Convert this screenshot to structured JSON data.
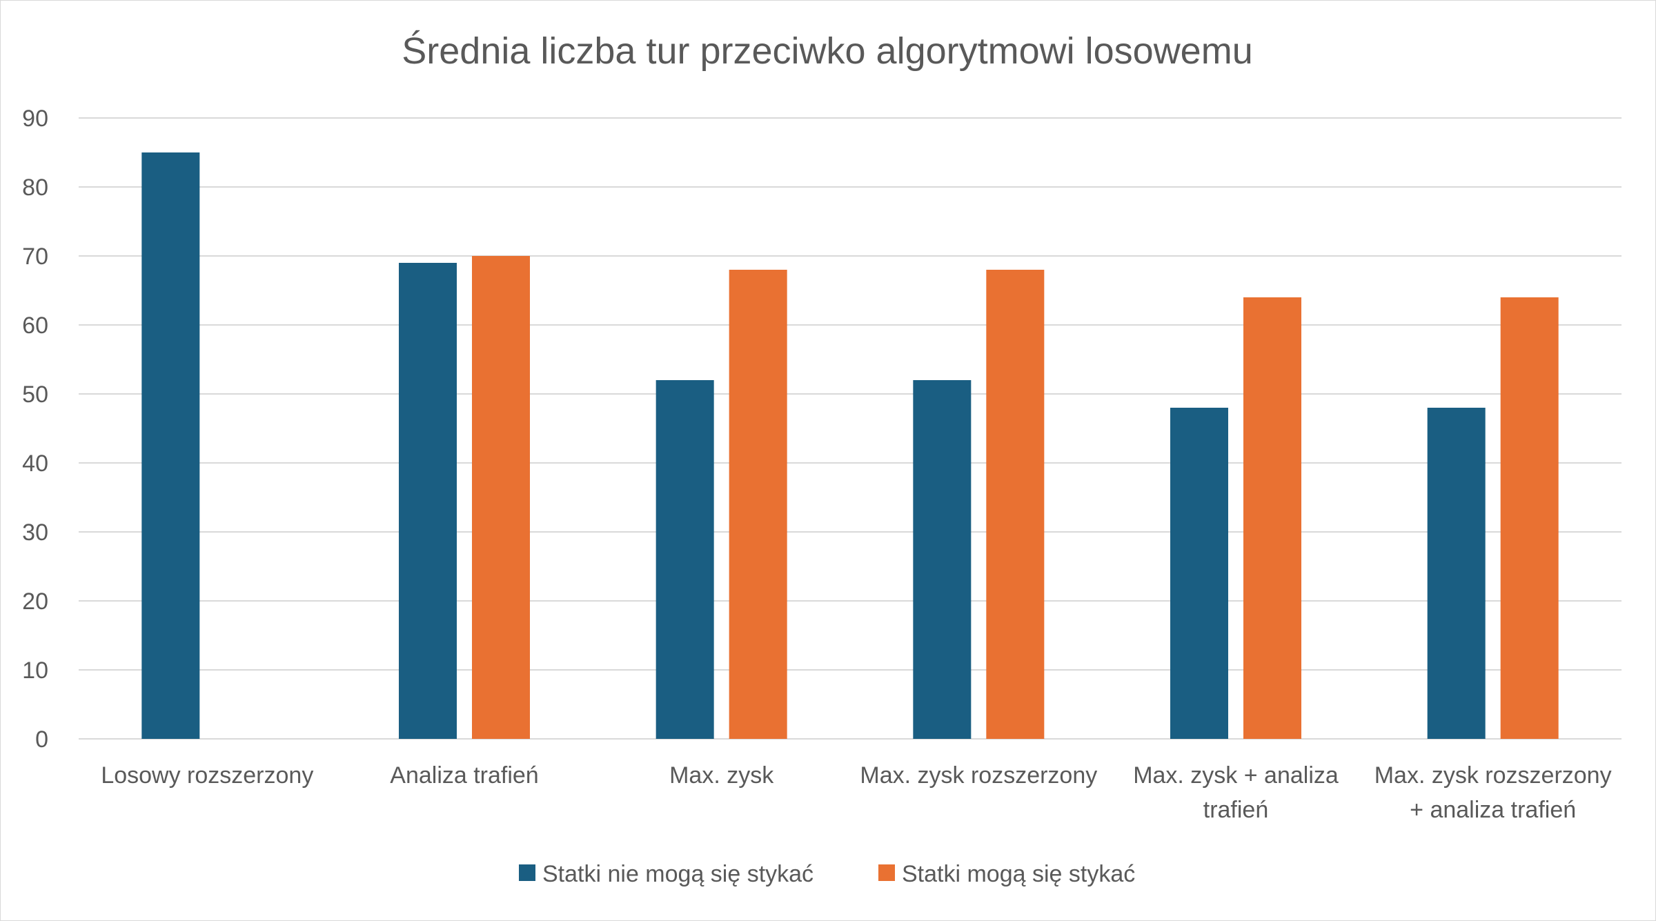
{
  "chart_data": {
    "type": "bar",
    "title": "Średnia liczba tur przeciwko algorytmowi losowemu",
    "xlabel": "",
    "ylabel": "",
    "ylim": [
      0,
      90
    ],
    "yticks": [
      0,
      10,
      20,
      30,
      40,
      50,
      60,
      70,
      80,
      90
    ],
    "grid": true,
    "legend_position": "bottom",
    "categories": [
      [
        "Losowy rozszerzony"
      ],
      [
        "Analiza trafień"
      ],
      [
        "Max. zysk"
      ],
      [
        "Max. zysk rozszerzony"
      ],
      [
        "Max. zysk + analiza",
        "trafień"
      ],
      [
        "Max. zysk rozszerzony",
        "+ analiza trafień"
      ]
    ],
    "series": [
      {
        "name": "Statki nie mogą się stykać",
        "color": "#1a5e82",
        "values": [
          85,
          69,
          52,
          52,
          48,
          48
        ]
      },
      {
        "name": "Statki mogą się stykać",
        "color": "#e97132",
        "values": [
          null,
          70,
          68,
          68,
          64,
          64
        ]
      }
    ]
  }
}
